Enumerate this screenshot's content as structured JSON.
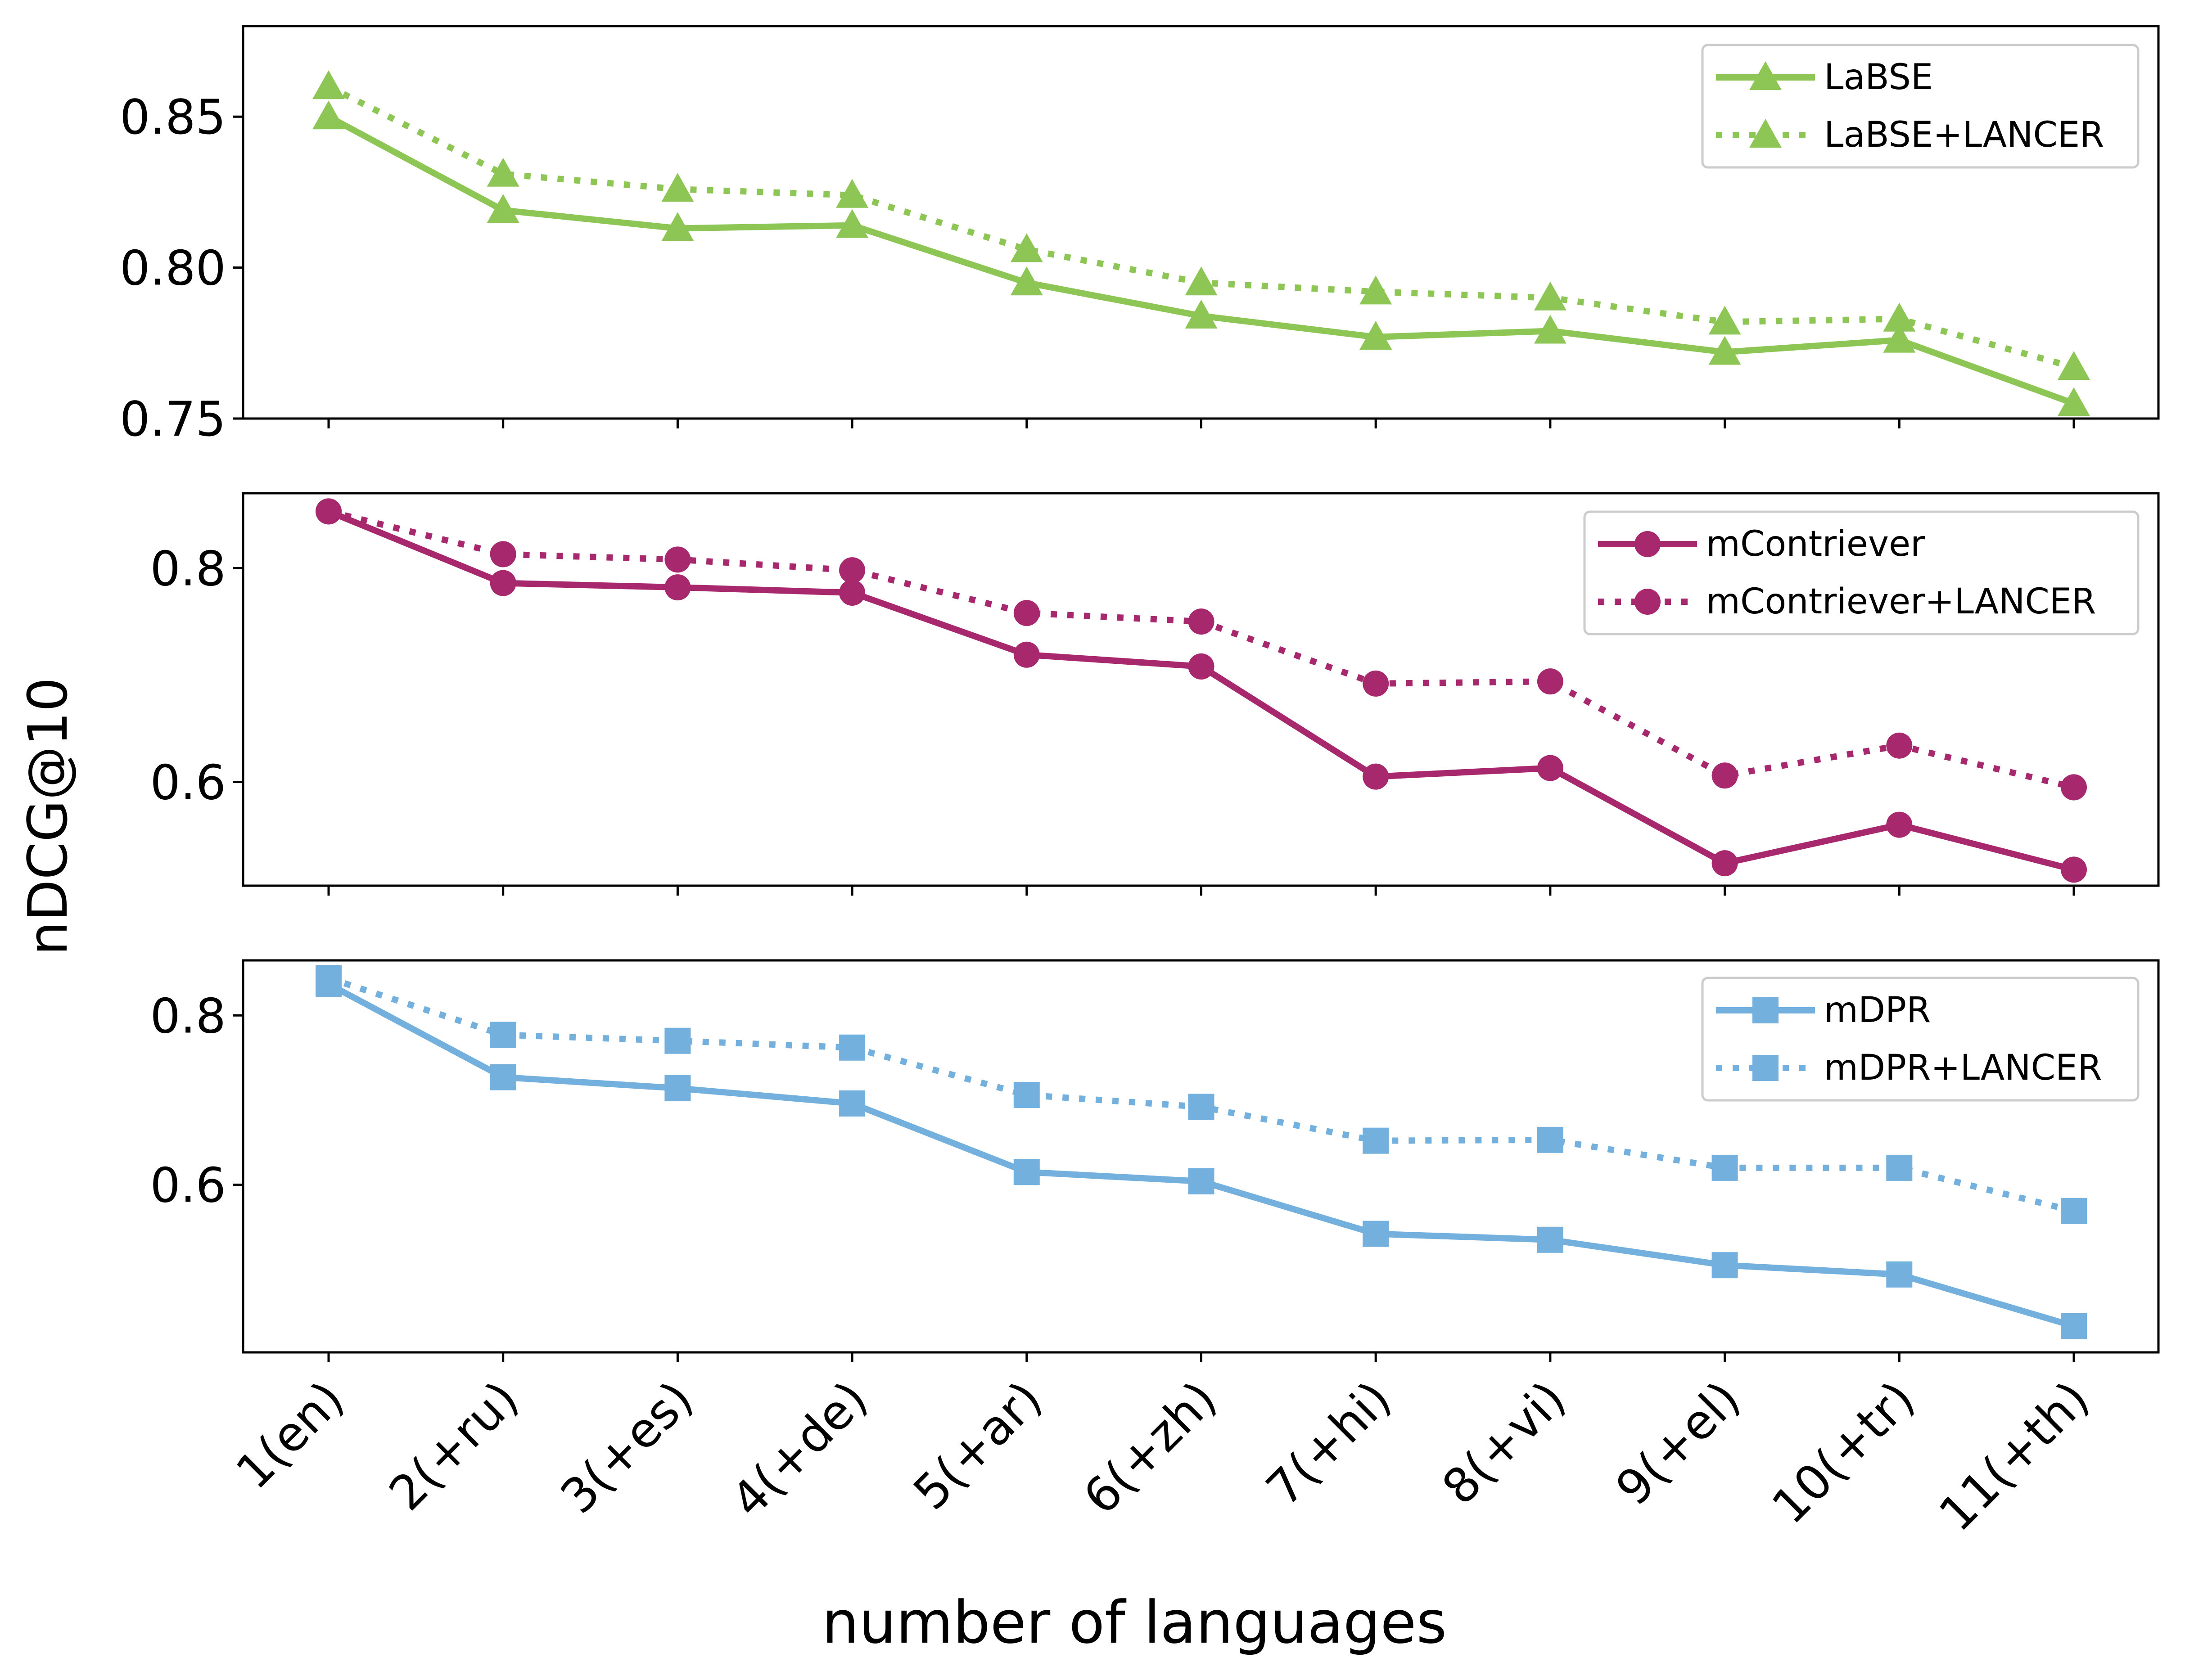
{
  "figure": {
    "ylabel": "nDCG@10",
    "xlabel": "number of languages"
  },
  "chart_data": [
    {
      "type": "line",
      "categories": [
        "1(en)",
        "2(+ru)",
        "3(+es)",
        "4(+de)",
        "5(+ar)",
        "6(+zh)",
        "7(+hi)",
        "8(+vi)",
        "9(+el)",
        "10(+tr)",
        "11(+th)"
      ],
      "ylim": [
        0.75,
        0.88
      ],
      "yticks": [
        0.75,
        0.8,
        0.85
      ],
      "ytick_labels": [
        "0.75",
        "0.80",
        "0.85"
      ],
      "grid": false,
      "legend_position": "top-right",
      "series": [
        {
          "name": "LaBSE",
          "marker": "triangle",
          "line_style": "solid",
          "color": "#8dc655",
          "values": [
            0.85,
            0.819,
            0.813,
            0.814,
            0.795,
            0.784,
            0.777,
            0.779,
            0.772,
            0.776,
            0.755
          ]
        },
        {
          "name": "LaBSE+LANCER",
          "marker": "triangle",
          "line_style": "dotted",
          "color": "#8dc655",
          "values": [
            0.86,
            0.831,
            0.826,
            0.824,
            0.806,
            0.795,
            0.792,
            0.79,
            0.782,
            0.783,
            0.767
          ]
        }
      ]
    },
    {
      "type": "line",
      "categories": [
        "1(en)",
        "2(+ru)",
        "3(+es)",
        "4(+de)",
        "5(+ar)",
        "6(+zh)",
        "7(+hi)",
        "8(+vi)",
        "9(+el)",
        "10(+tr)",
        "11(+th)"
      ],
      "ylim": [
        0.503,
        0.87
      ],
      "yticks": [
        0.6,
        0.8
      ],
      "ytick_labels": [
        "0.6",
        "0.8"
      ],
      "grid": false,
      "legend_position": "top-right",
      "series": [
        {
          "name": "mContriever",
          "marker": "circle",
          "line_style": "solid",
          "color": "#a8286e",
          "values": [
            0.853,
            0.786,
            0.782,
            0.777,
            0.719,
            0.708,
            0.605,
            0.613,
            0.524,
            0.56,
            0.518
          ]
        },
        {
          "name": "mContriever+LANCER",
          "marker": "circle",
          "line_style": "dotted",
          "color": "#a8286e",
          "values": [
            0.853,
            0.813,
            0.808,
            0.798,
            0.758,
            0.75,
            0.692,
            0.694,
            0.606,
            0.634,
            0.595
          ]
        }
      ]
    },
    {
      "type": "line",
      "categories": [
        "1(en)",
        "2(+ru)",
        "3(+es)",
        "4(+de)",
        "5(+ar)",
        "6(+zh)",
        "7(+hi)",
        "8(+vi)",
        "9(+el)",
        "10(+tr)",
        "11(+th)"
      ],
      "ylim": [
        0.402,
        0.865
      ],
      "yticks": [
        0.6,
        0.8
      ],
      "ytick_labels": [
        "0.6",
        "0.8"
      ],
      "grid": false,
      "legend_position": "top-right",
      "series": [
        {
          "name": "mDPR",
          "marker": "square",
          "line_style": "solid",
          "color": "#74b0de",
          "values": [
            0.837,
            0.727,
            0.714,
            0.696,
            0.615,
            0.604,
            0.542,
            0.535,
            0.505,
            0.494,
            0.433
          ]
        },
        {
          "name": "mDPR+LANCER",
          "marker": "square",
          "line_style": "dotted",
          "color": "#74b0de",
          "values": [
            0.844,
            0.777,
            0.77,
            0.762,
            0.706,
            0.692,
            0.652,
            0.653,
            0.62,
            0.62,
            0.569
          ]
        }
      ]
    }
  ]
}
